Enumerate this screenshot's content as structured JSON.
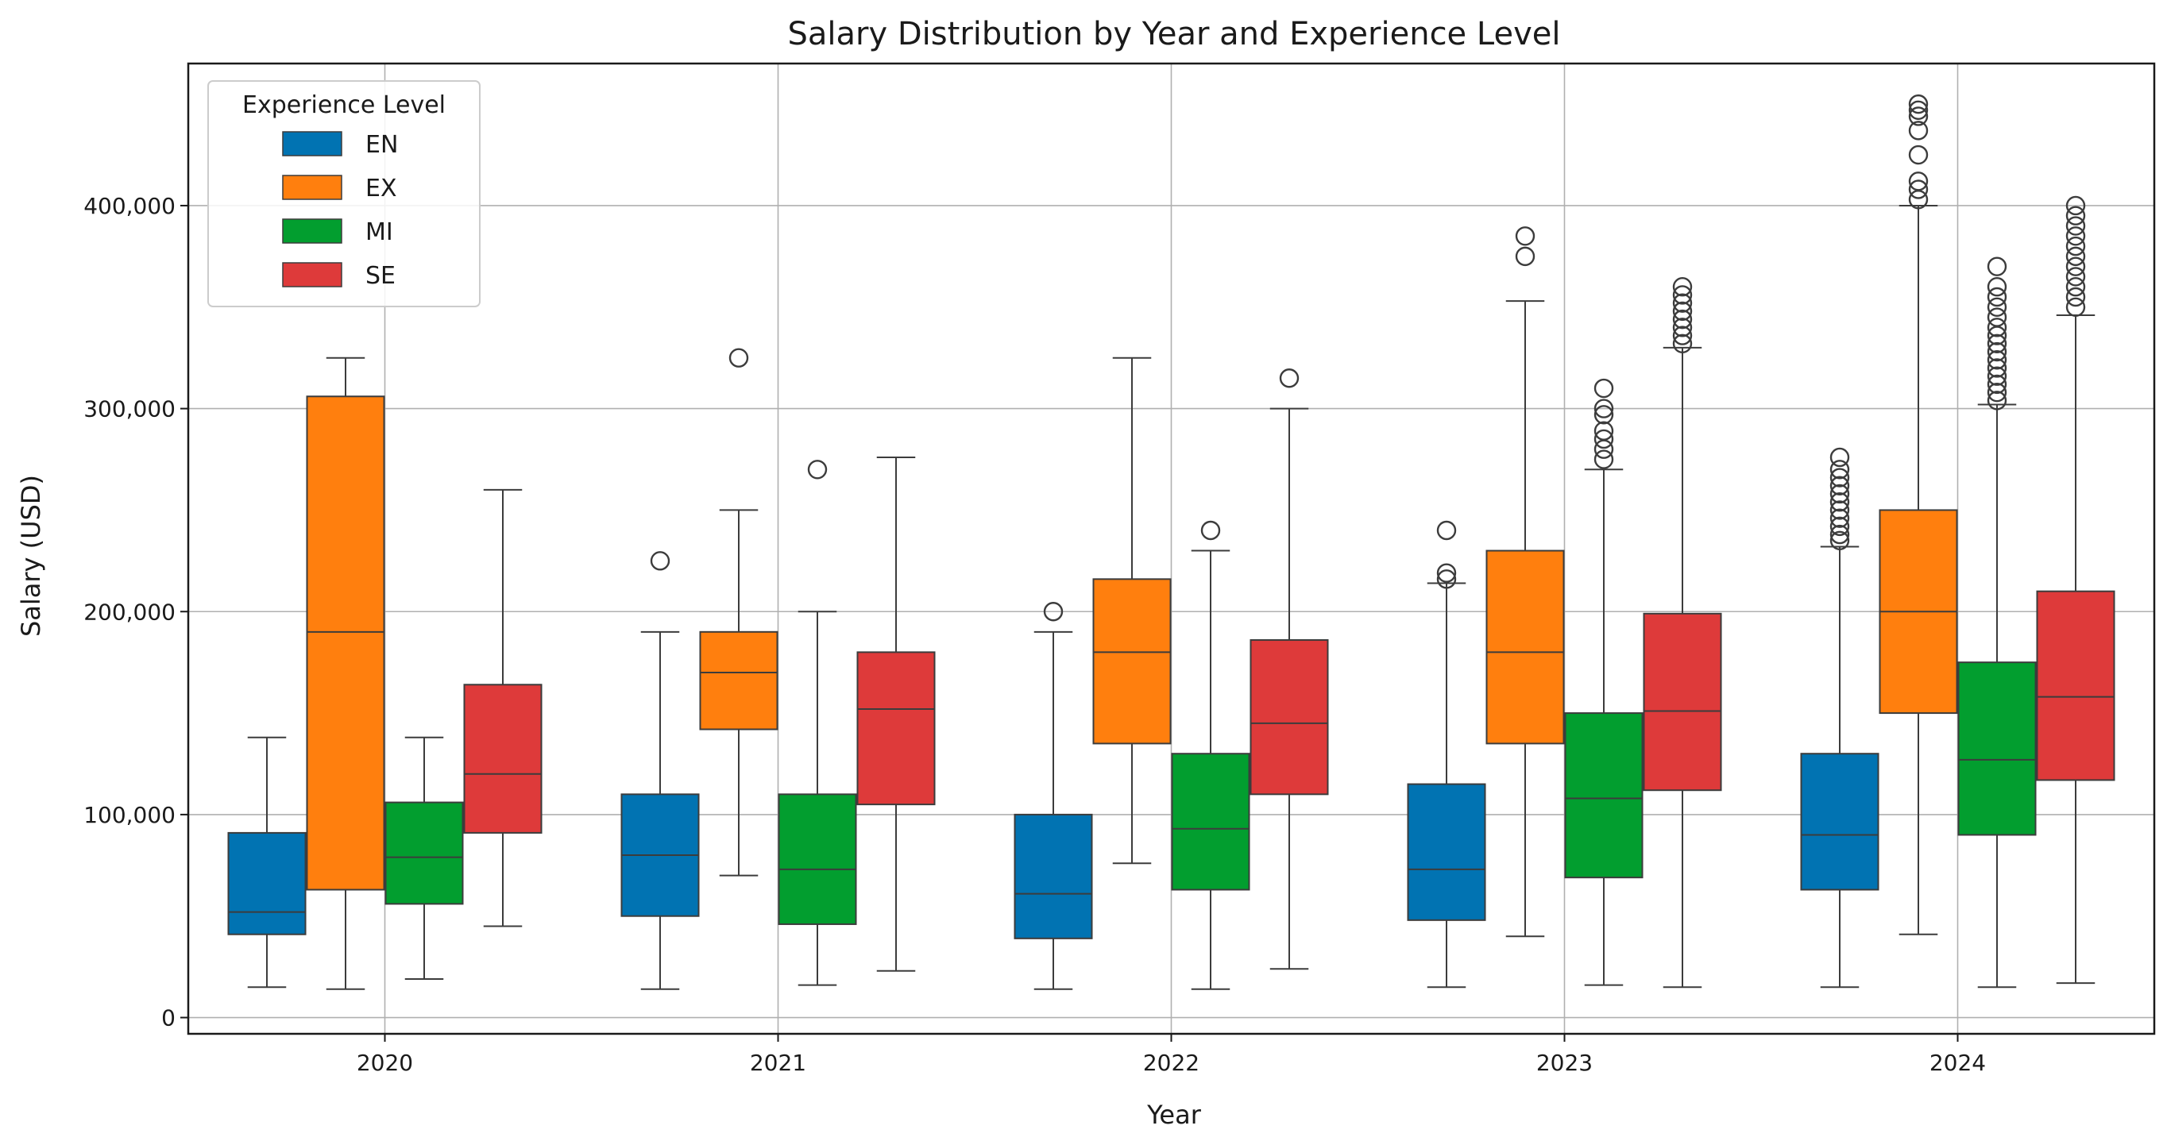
{
  "chart_data": {
    "type": "box",
    "title": "Salary Distribution by Year and Experience Level",
    "xlabel": "Year",
    "ylabel": "Salary (USD)",
    "categories": [
      "2020",
      "2021",
      "2022",
      "2023",
      "2024"
    ],
    "ylim": [
      -8000,
      470000
    ],
    "yticks": [
      0,
      100000,
      200000,
      300000,
      400000
    ],
    "ytick_labels": [
      "0",
      "100,000",
      "200,000",
      "300,000",
      "400,000"
    ],
    "grid": true,
    "legend": {
      "title": "Experience Level",
      "position": "top-left"
    },
    "series": [
      {
        "name": "EN",
        "color": "#0173b2",
        "boxes": [
          {
            "whislo": 15000,
            "q1": 41000,
            "med": 52000,
            "q3": 91000,
            "whishi": 138000,
            "fliers": []
          },
          {
            "whislo": 14000,
            "q1": 50000,
            "med": 80000,
            "q3": 110000,
            "whishi": 190000,
            "fliers": [
              225000
            ]
          },
          {
            "whislo": 14000,
            "q1": 39000,
            "med": 61000,
            "q3": 100000,
            "whishi": 190000,
            "fliers": [
              200000
            ]
          },
          {
            "whislo": 15000,
            "q1": 48000,
            "med": 73000,
            "q3": 115000,
            "whishi": 214000,
            "fliers": [
              216000,
              219000,
              240000
            ]
          },
          {
            "whislo": 15000,
            "q1": 63000,
            "med": 90000,
            "q3": 130000,
            "whishi": 232000,
            "fliers": [
              235000,
              238000,
              242000,
              246000,
              250000,
              254000,
              258000,
              262000,
              266000,
              270000,
              276000
            ]
          }
        ]
      },
      {
        "name": "EX",
        "color": "#ff7f0e",
        "boxes": [
          {
            "whislo": 14000,
            "q1": 63000,
            "med": 190000,
            "q3": 306000,
            "whishi": 325000,
            "fliers": []
          },
          {
            "whislo": 70000,
            "q1": 142000,
            "med": 170000,
            "q3": 190000,
            "whishi": 250000,
            "fliers": [
              325000
            ]
          },
          {
            "whislo": 76000,
            "q1": 135000,
            "med": 180000,
            "q3": 216000,
            "whishi": 325000,
            "fliers": []
          },
          {
            "whislo": 40000,
            "q1": 135000,
            "med": 180000,
            "q3": 230000,
            "whishi": 353000,
            "fliers": [
              375000,
              385000
            ]
          },
          {
            "whislo": 41000,
            "q1": 150000,
            "med": 200000,
            "q3": 250000,
            "whishi": 400000,
            "fliers": [
              403000,
              408000,
              412000,
              425000,
              437000,
              444000,
              447000,
              450000
            ]
          }
        ]
      },
      {
        "name": "MI",
        "color": "#029e2f",
        "boxes": [
          {
            "whislo": 19000,
            "q1": 56000,
            "med": 79000,
            "q3": 106000,
            "whishi": 138000,
            "fliers": []
          },
          {
            "whislo": 16000,
            "q1": 46000,
            "med": 73000,
            "q3": 110000,
            "whishi": 200000,
            "fliers": [
              270000
            ]
          },
          {
            "whislo": 14000,
            "q1": 63000,
            "med": 93000,
            "q3": 130000,
            "whishi": 230000,
            "fliers": [
              240000
            ]
          },
          {
            "whislo": 16000,
            "q1": 69000,
            "med": 108000,
            "q3": 150000,
            "whishi": 270000,
            "fliers": [
              275000,
              280000,
              285000,
              289000,
              297000,
              300000,
              310000
            ]
          },
          {
            "whislo": 15000,
            "q1": 90000,
            "med": 127000,
            "q3": 175000,
            "whishi": 302000,
            "fliers": [
              304000,
              308000,
              312000,
              316000,
              320000,
              324000,
              328000,
              332000,
              336000,
              340000,
              345000,
              350000,
              355000,
              360000,
              370000
            ]
          }
        ]
      },
      {
        "name": "SE",
        "color": "#de3a3a",
        "boxes": [
          {
            "whislo": 45000,
            "q1": 91000,
            "med": 120000,
            "q3": 164000,
            "whishi": 260000,
            "fliers": []
          },
          {
            "whislo": 23000,
            "q1": 105000,
            "med": 152000,
            "q3": 180000,
            "whishi": 276000,
            "fliers": []
          },
          {
            "whislo": 24000,
            "q1": 110000,
            "med": 145000,
            "q3": 186000,
            "whishi": 300000,
            "fliers": [
              315000
            ]
          },
          {
            "whislo": 15000,
            "q1": 112000,
            "med": 151000,
            "q3": 199000,
            "whishi": 330000,
            "fliers": [
              332000,
              336000,
              340000,
              344000,
              348000,
              352000,
              356000,
              360000
            ]
          },
          {
            "whislo": 17000,
            "q1": 117000,
            "med": 158000,
            "q3": 210000,
            "whishi": 346000,
            "fliers": [
              350000,
              355000,
              360000,
              365000,
              370000,
              375000,
              380000,
              385000,
              390000,
              395000,
              400000
            ]
          }
        ]
      }
    ]
  }
}
